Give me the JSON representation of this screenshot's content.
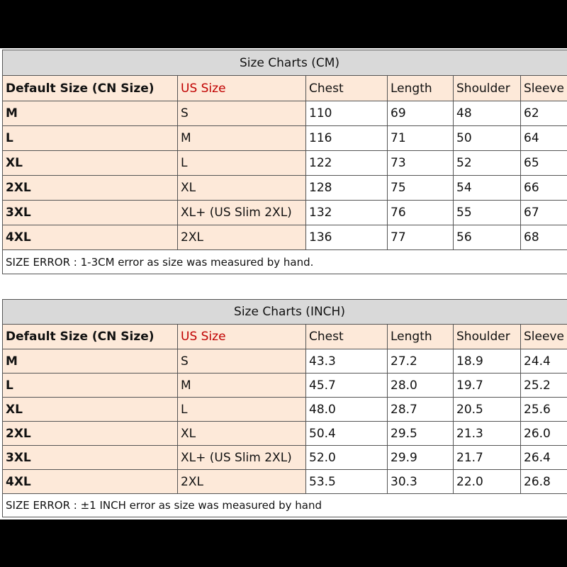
{
  "colors": {
    "title_bg": "#d9d9d9",
    "label_bg": "#fde9d9",
    "us_size_header": "#c00000"
  },
  "tables": [
    {
      "title": "Size Charts (CM)",
      "headers": [
        "Default Size (CN Size)",
        "US Size",
        "Chest",
        "Length",
        "Shoulder",
        "Sleeve"
      ],
      "rows": [
        [
          "M",
          "S",
          "110",
          "69",
          "48",
          "62"
        ],
        [
          "L",
          "M",
          "116",
          "71",
          "50",
          "64"
        ],
        [
          "XL",
          "L",
          "122",
          "73",
          "52",
          "65"
        ],
        [
          "2XL",
          "XL",
          "128",
          "75",
          "54",
          "66"
        ],
        [
          "3XL",
          "XL+ (US Slim 2XL)",
          "132",
          "76",
          "55",
          "67"
        ],
        [
          "4XL",
          "2XL",
          "136",
          "77",
          "56",
          "68"
        ]
      ],
      "note": "SIZE ERROR : 1-3CM error as size was measured by hand."
    },
    {
      "title": "Size Charts (INCH)",
      "headers": [
        "Default Size (CN Size)",
        "US Size",
        "Chest",
        "Length",
        "Shoulder",
        "Sleeve"
      ],
      "rows": [
        [
          "M",
          "S",
          "43.3",
          "27.2",
          "18.9",
          "24.4"
        ],
        [
          "L",
          "M",
          "45.7",
          "28.0",
          "19.7",
          "25.2"
        ],
        [
          "XL",
          "L",
          "48.0",
          "28.7",
          "20.5",
          "25.6"
        ],
        [
          "2XL",
          "XL",
          "50.4",
          "29.5",
          "21.3",
          "26.0"
        ],
        [
          "3XL",
          "XL+ (US Slim 2XL)",
          "52.0",
          "29.9",
          "21.7",
          "26.4"
        ],
        [
          "4XL",
          "2XL",
          "53.5",
          "30.3",
          "22.0",
          "26.8"
        ]
      ],
      "note": "SIZE ERROR : ±1 INCH error as size was measured by hand"
    }
  ]
}
